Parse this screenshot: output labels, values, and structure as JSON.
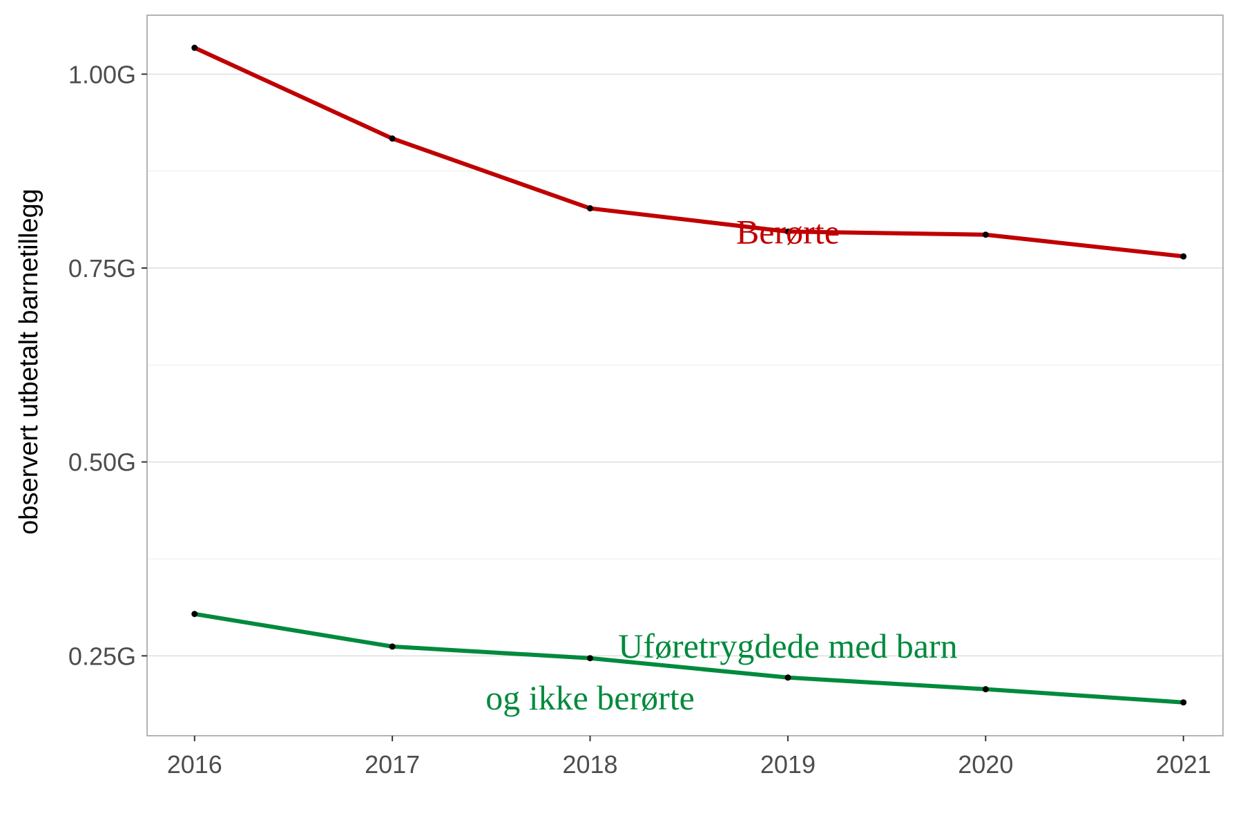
{
  "chart_data": {
    "type": "line",
    "ylabel": "observert utbetalt barnetillegg",
    "x": [
      2016,
      2017,
      2018,
      2019,
      2020,
      2021
    ],
    "x_tick_labels": [
      "2016",
      "2017",
      "2018",
      "2019",
      "2020",
      "2021"
    ],
    "y_ticks": [
      0.25,
      0.5,
      0.75,
      1.0
    ],
    "y_tick_labels": [
      "0.25G",
      "0.50G",
      "0.75G",
      "1.00G"
    ],
    "xlim": [
      2015.76,
      2021.2
    ],
    "ylim": [
      0.147,
      1.076
    ],
    "grid": true,
    "legend": "none",
    "series": [
      {
        "name": "Berørte",
        "color": "#c00000",
        "values": [
          1.034,
          0.917,
          0.827,
          0.797,
          0.793,
          0.765
        ]
      },
      {
        "values": [
          0.304,
          0.262,
          0.247,
          0.222,
          0.207,
          0.19
        ],
        "color": "#008a3c"
      }
    ],
    "annotations": [
      {
        "text": "Berørte",
        "x": 2019,
        "y": 0.796,
        "color": "#c00000"
      },
      {
        "text": "Uføretrygdede med barn",
        "x": 2019,
        "y": 0.262,
        "color": "#008a3c"
      },
      {
        "text": "og ikke berørte",
        "x": 2018,
        "y": 0.195,
        "color": "#008a3c"
      }
    ],
    "point_color": "#000000",
    "panel_border_color": "#b3b3b3",
    "grid_color": "#dedede"
  }
}
